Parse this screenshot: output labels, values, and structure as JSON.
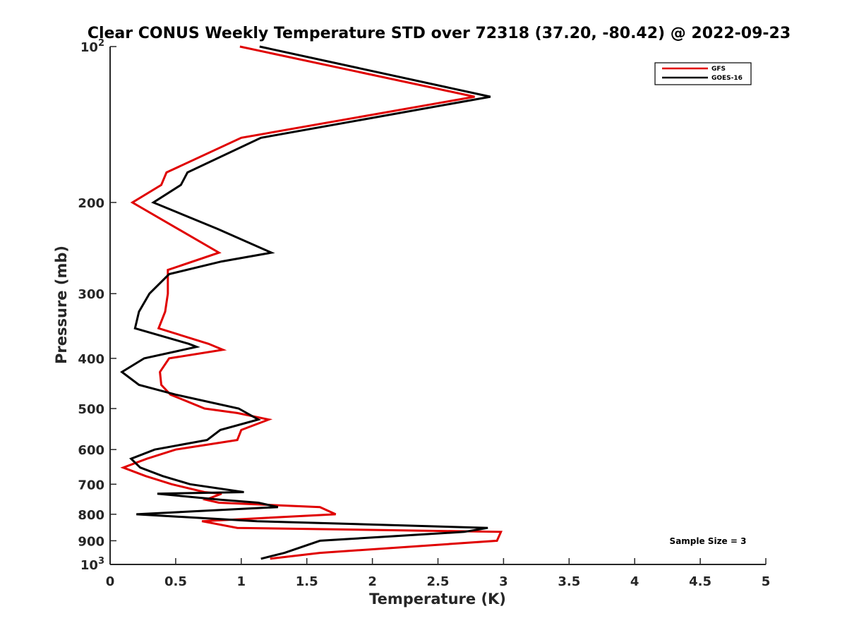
{
  "chart_data": {
    "type": "line",
    "title": "Clear CONUS Weekly Temperature STD over 72318 (37.20, -80.42) @ 2022-09-23",
    "xlabel": "Temperature (K)",
    "ylabel": "Pressure (mb)",
    "xlim": [
      0,
      5
    ],
    "ylim": [
      100,
      1000
    ],
    "y_scale": "log",
    "y_reversed": true,
    "x_ticks": [
      0,
      0.5,
      1,
      1.5,
      2,
      2.5,
      3,
      3.5,
      4,
      4.5,
      5
    ],
    "x_tick_labels": [
      "0",
      "0.5",
      "1",
      "1.5",
      "2",
      "2.5",
      "3",
      "3.5",
      "4",
      "4.5",
      "5"
    ],
    "y_ticks": [
      100,
      200,
      300,
      400,
      500,
      600,
      700,
      800,
      900,
      1000
    ],
    "y_tick_labels": [
      {
        "base": "10",
        "exp": "2"
      },
      {
        "base": "200",
        "exp": ""
      },
      {
        "base": "300",
        "exp": ""
      },
      {
        "base": "400",
        "exp": ""
      },
      {
        "base": "500",
        "exp": ""
      },
      {
        "base": "600",
        "exp": ""
      },
      {
        "base": "700",
        "exp": ""
      },
      {
        "base": "800",
        "exp": ""
      },
      {
        "base": "900",
        "exp": ""
      },
      {
        "base": "10",
        "exp": "3"
      }
    ],
    "grid": false,
    "legend_position": "top-right",
    "annotation": "Sample Size = 3",
    "series": [
      {
        "name": "GFS",
        "color": "#e00000",
        "points": [
          [
            0.99,
            100
          ],
          [
            2.78,
            125
          ],
          [
            1.0,
            150
          ],
          [
            0.43,
            175
          ],
          [
            0.39,
            185
          ],
          [
            0.17,
            200
          ],
          [
            0.83,
            250
          ],
          [
            0.44,
            270
          ],
          [
            0.44,
            300
          ],
          [
            0.42,
            325
          ],
          [
            0.37,
            350
          ],
          [
            0.75,
            375
          ],
          [
            0.86,
            385
          ],
          [
            0.45,
            400
          ],
          [
            0.38,
            425
          ],
          [
            0.39,
            450
          ],
          [
            0.46,
            470
          ],
          [
            0.72,
            500
          ],
          [
            0.97,
            510
          ],
          [
            1.21,
            525
          ],
          [
            1.0,
            550
          ],
          [
            0.97,
            575
          ],
          [
            0.5,
            600
          ],
          [
            0.28,
            625
          ],
          [
            0.1,
            650
          ],
          [
            0.27,
            675
          ],
          [
            0.47,
            700
          ],
          [
            0.72,
            725
          ],
          [
            0.85,
            730
          ],
          [
            0.73,
            750
          ],
          [
            0.83,
            760
          ],
          [
            1.6,
            775
          ],
          [
            1.72,
            800
          ],
          [
            0.7,
            825
          ],
          [
            0.97,
            850
          ],
          [
            2.98,
            865
          ],
          [
            2.95,
            900
          ],
          [
            1.6,
            950
          ],
          [
            1.22,
            975
          ]
        ]
      },
      {
        "name": "GOES-16",
        "color": "#000000",
        "points": [
          [
            1.14,
            100
          ],
          [
            2.9,
            125
          ],
          [
            1.15,
            150
          ],
          [
            0.59,
            175
          ],
          [
            0.54,
            185
          ],
          [
            0.33,
            200
          ],
          [
            0.82,
            225
          ],
          [
            1.23,
            250
          ],
          [
            0.85,
            260
          ],
          [
            0.45,
            275
          ],
          [
            0.3,
            300
          ],
          [
            0.22,
            325
          ],
          [
            0.19,
            350
          ],
          [
            0.6,
            375
          ],
          [
            0.66,
            380
          ],
          [
            0.26,
            400
          ],
          [
            0.09,
            425
          ],
          [
            0.22,
            450
          ],
          [
            0.5,
            470
          ],
          [
            0.98,
            500
          ],
          [
            1.13,
            525
          ],
          [
            0.84,
            550
          ],
          [
            0.74,
            575
          ],
          [
            0.34,
            600
          ],
          [
            0.16,
            625
          ],
          [
            0.23,
            650
          ],
          [
            0.4,
            675
          ],
          [
            0.61,
            700
          ],
          [
            1.02,
            725
          ],
          [
            0.36,
            730
          ],
          [
            0.84,
            750
          ],
          [
            1.13,
            760
          ],
          [
            1.28,
            775
          ],
          [
            0.2,
            800
          ],
          [
            1.12,
            825
          ],
          [
            2.88,
            850
          ],
          [
            2.7,
            865
          ],
          [
            1.6,
            900
          ],
          [
            1.33,
            950
          ],
          [
            1.15,
            975
          ]
        ]
      }
    ]
  }
}
